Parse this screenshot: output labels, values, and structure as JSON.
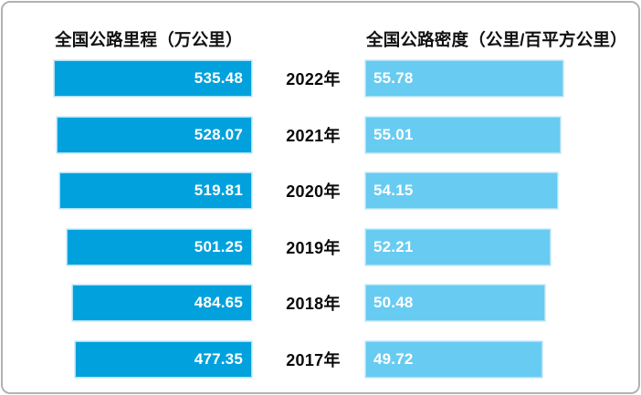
{
  "titles": {
    "left": "全国公路里程（万公里）",
    "right": "全国公路密度（公里/百平方公里）"
  },
  "colors": {
    "mileage_bar": "#00a1dc",
    "density_bar": "#68cbf1",
    "value_text": "#ffffff",
    "label_text": "#0a0a0a",
    "card_border": "#b2b2b2",
    "card_background": "#ffffff"
  },
  "chart_data": {
    "type": "bar",
    "orientation": "horizontal-bidirectional",
    "categories": [
      "2022年",
      "2021年",
      "2020年",
      "2019年",
      "2018年",
      "2017年"
    ],
    "series": [
      {
        "name": "全国公路里程（万公里）",
        "side": "left",
        "color": "#00a1dc",
        "values": [
          535.48,
          528.07,
          519.81,
          501.25,
          484.65,
          477.35
        ],
        "value_labels": [
          "535.48",
          "528.07",
          "519.81",
          "501.25",
          "484.65",
          "477.35"
        ]
      },
      {
        "name": "全国公路密度（公里/百平方公里）",
        "side": "right",
        "color": "#68cbf1",
        "values": [
          55.78,
          55.01,
          54.15,
          52.21,
          50.48,
          49.72
        ],
        "value_labels": [
          "55.78",
          "55.01",
          "54.15",
          "52.21",
          "50.48",
          "49.72"
        ]
      }
    ],
    "value_label_position": "inside",
    "axes": "none",
    "gridlines": false,
    "legend": "none"
  }
}
